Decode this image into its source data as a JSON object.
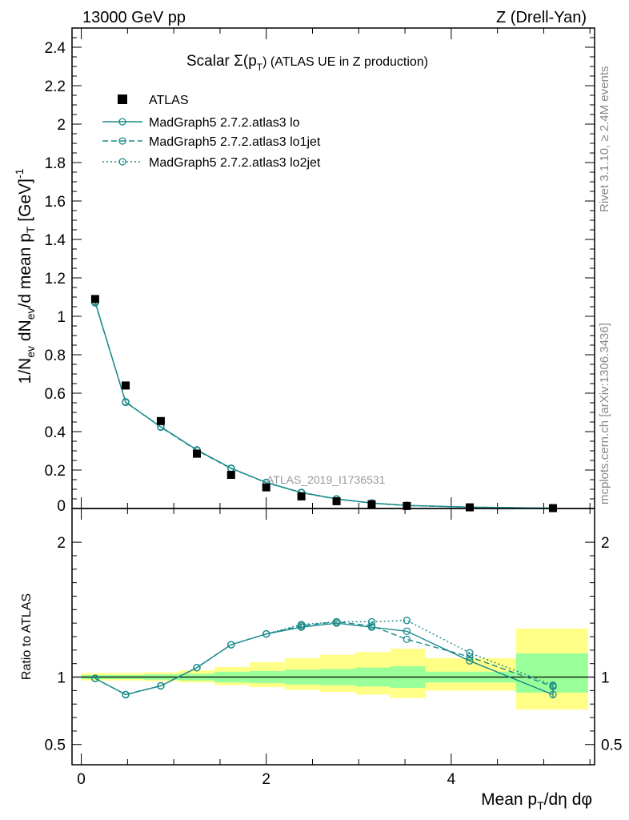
{
  "header": {
    "left": "13000 GeV pp",
    "right": "Z (Drell-Yan)"
  },
  "side_labels": {
    "rivet": "Rivet 3.1.10, ≥ 2.4M events",
    "mcplots": "mcplots.cern.ch [arXiv:1306.3436]"
  },
  "colors": {
    "mc": "#1a8a8a",
    "data": "#000000",
    "band_inner": "#99ff99",
    "band_outer": "#ffff88"
  },
  "chart_data": [
    {
      "type": "line",
      "title": "Scalar Σ(pT) (ATLAS UE in Z production)",
      "title_main": "Scalar Σ(p",
      "title_sub": "T",
      "title_tail": ")  (ATLAS UE in Z production)",
      "ylabel": "1/N_ev dN_ev/d mean p_T [GeV]^-1",
      "watermark": "ATLAS_2019_I1736531",
      "xlim": [
        -0.1,
        5.55
      ],
      "ylim": [
        0,
        2.5
      ],
      "yticks": [
        0.2,
        0.4,
        0.6,
        0.8,
        1.0,
        1.2,
        1.4,
        1.6,
        1.8,
        2.0,
        2.2,
        2.4
      ],
      "ytick_labels": [
        "0.2",
        "0.4",
        "0.6",
        "0.8",
        "1",
        "1.2",
        "1.4",
        "1.6",
        "1.8",
        "2",
        "2.2",
        "2.4"
      ],
      "y_zero_label": "0",
      "legend": [
        "ATLAS",
        "MadGraph5 2.7.2.atlas3 lo",
        "MadGraph5 2.7.2.atlas3 lo1jet",
        "MadGraph5 2.7.2.atlas3 lo2jet"
      ],
      "x": [
        0.15,
        0.48,
        0.86,
        1.25,
        1.62,
        2.0,
        2.38,
        2.76,
        3.14,
        3.52,
        4.2,
        5.1
      ],
      "data": {
        "name": "ATLAS",
        "values": [
          1.09,
          0.64,
          0.455,
          0.285,
          0.175,
          0.11,
          0.063,
          0.038,
          0.022,
          0.013,
          0.006,
          0.002
        ]
      },
      "series": [
        {
          "name": "MadGraph5 2.7.2.atlas3 lo",
          "style": "solid",
          "values": [
            1.075,
            0.553,
            0.425,
            0.305,
            0.21,
            0.135,
            0.083,
            0.05,
            0.028,
            0.016,
            0.007,
            0.0017
          ]
        },
        {
          "name": "MadGraph5 2.7.2.atlas3 lo1jet",
          "style": "dashed",
          "values": [
            1.07,
            0.555,
            0.423,
            0.302,
            0.208,
            0.134,
            0.082,
            0.049,
            0.028,
            0.015,
            0.007,
            0.0018
          ]
        },
        {
          "name": "MadGraph5 2.7.2.atlas3 lo2jet",
          "style": "dotted",
          "values": [
            1.072,
            0.552,
            0.424,
            0.304,
            0.209,
            0.136,
            0.084,
            0.05,
            0.029,
            0.017,
            0.007,
            0.0019
          ]
        }
      ]
    },
    {
      "type": "line",
      "title": "",
      "ylabel": "Ratio to ATLAS",
      "xlabel": "Mean pT/dη dφ",
      "xlabel_main": "Mean p",
      "xlabel_sub": "T",
      "xlabel_tail": "/dη dφ",
      "xlim": [
        -0.1,
        5.55
      ],
      "ylim": [
        0.35,
        2.25
      ],
      "yticks": [
        0.5,
        1,
        2
      ],
      "ytick_labels": [
        "0.5",
        "1",
        "2"
      ],
      "xticks": [
        0,
        2,
        4
      ],
      "xtick_labels": [
        "0",
        "2",
        "4"
      ],
      "reference": 1.0,
      "bins": [
        [
          0.0,
          0.3
        ],
        [
          0.3,
          0.68
        ],
        [
          0.68,
          1.06
        ],
        [
          1.06,
          1.44
        ],
        [
          1.44,
          1.82
        ],
        [
          1.82,
          2.2
        ],
        [
          2.2,
          2.58
        ],
        [
          2.58,
          2.96
        ],
        [
          2.96,
          3.34
        ],
        [
          3.34,
          3.72
        ],
        [
          3.72,
          4.7
        ],
        [
          4.7,
          5.48
        ]
      ],
      "band_inner": [
        [
          0.985,
          1.015
        ],
        [
          0.985,
          1.015
        ],
        [
          0.98,
          1.02
        ],
        [
          0.975,
          1.025
        ],
        [
          0.96,
          1.04
        ],
        [
          0.955,
          1.045
        ],
        [
          0.945,
          1.055
        ],
        [
          0.94,
          1.06
        ],
        [
          0.93,
          1.07
        ],
        [
          0.92,
          1.08
        ],
        [
          0.96,
          1.04
        ],
        [
          0.885,
          1.175
        ]
      ],
      "band_outer": [
        [
          0.975,
          1.03
        ],
        [
          0.975,
          1.03
        ],
        [
          0.97,
          1.035
        ],
        [
          0.96,
          1.05
        ],
        [
          0.94,
          1.075
        ],
        [
          0.925,
          1.11
        ],
        [
          0.905,
          1.14
        ],
        [
          0.89,
          1.165
        ],
        [
          0.87,
          1.185
        ],
        [
          0.845,
          1.21
        ],
        [
          0.9,
          1.14
        ],
        [
          0.76,
          1.36
        ]
      ],
      "x": [
        0.15,
        0.48,
        0.86,
        1.25,
        1.62,
        2.0,
        2.38,
        2.76,
        3.14,
        3.52,
        4.2,
        5.1
      ],
      "series": [
        {
          "name": "lo",
          "style": "solid",
          "values": [
            0.99,
            0.87,
            0.935,
            1.07,
            1.24,
            1.32,
            1.37,
            1.4,
            1.37,
            1.34,
            1.12,
            0.87
          ]
        },
        {
          "name": "lo1jet",
          "style": "dashed",
          "values": [
            0.99,
            0.87,
            0.935,
            1.07,
            1.24,
            1.32,
            1.38,
            1.41,
            1.38,
            1.28,
            1.15,
            0.93
          ]
        },
        {
          "name": "lo2jet",
          "style": "dotted",
          "values": [
            0.99,
            0.87,
            0.935,
            1.07,
            1.24,
            1.32,
            1.39,
            1.41,
            1.41,
            1.42,
            1.18,
            0.94
          ]
        }
      ]
    }
  ]
}
